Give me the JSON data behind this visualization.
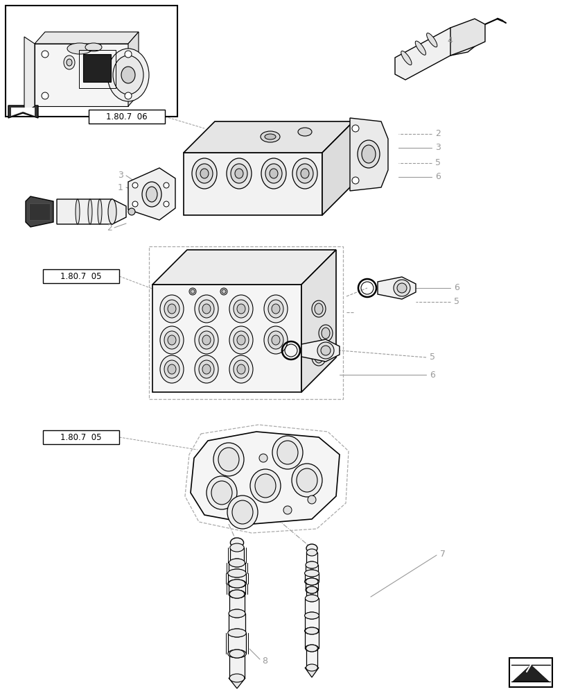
{
  "bg_color": "#ffffff",
  "lc": "#000000",
  "gray": "#aaaaaa",
  "dgray": "#666666",
  "lgray": "#cccccc",
  "label_color": "#999999",
  "figsize": [
    8.12,
    10.0
  ],
  "dpi": 100,
  "ref_texts": [
    "1.80.7  06",
    "1.80.7  05",
    "1.80.7  05"
  ]
}
